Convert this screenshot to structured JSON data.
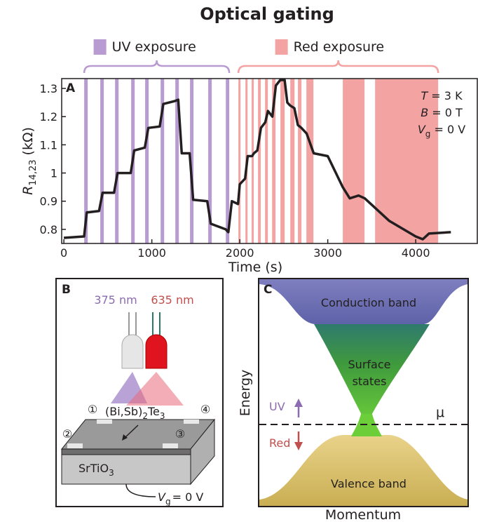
{
  "title": "Optical gating",
  "chart_data": {
    "type": "line",
    "panel": "A",
    "xlabel": "Time (s)",
    "ylabel": [
      "R",
      "14,23",
      " (kΩ)"
    ],
    "uv_label": "UV exposure",
    "red_label": "Red exposure",
    "x": [
      0,
      230,
      260,
      400,
      440,
      570,
      610,
      760,
      800,
      920,
      960,
      1090,
      1130,
      1260,
      1300,
      1340,
      1430,
      1470,
      1630,
      1670,
      1840,
      1870,
      1910,
      1980,
      2000,
      2060,
      2090,
      2140,
      2160,
      2200,
      2240,
      2290,
      2320,
      2370,
      2410,
      2460,
      2510,
      2540,
      2570,
      2620,
      2660,
      2700,
      2760,
      2840,
      3000,
      3170,
      3250,
      3350,
      3420,
      3700,
      4000,
      4080,
      4150,
      4400
    ],
    "series": [
      {
        "color": "#231f20",
        "values": [
          0.77,
          0.775,
          0.86,
          0.865,
          0.93,
          0.93,
          1.0,
          1.0,
          1.08,
          1.09,
          1.16,
          1.165,
          1.245,
          1.255,
          1.26,
          1.07,
          1.07,
          0.905,
          0.9,
          0.82,
          0.8,
          0.79,
          0.9,
          0.89,
          0.96,
          0.98,
          1.06,
          1.06,
          1.07,
          1.08,
          1.16,
          1.18,
          1.22,
          1.2,
          1.31,
          1.33,
          1.33,
          1.25,
          1.24,
          1.23,
          1.17,
          1.16,
          1.14,
          1.07,
          1.06,
          0.95,
          0.91,
          0.92,
          0.91,
          0.83,
          0.775,
          0.765,
          0.785,
          0.79
        ]
      }
    ],
    "xlim": [
      -25,
      4700
    ],
    "ylim": [
      0.75,
      1.335
    ],
    "xticks": [
      0,
      1000,
      2000,
      3000,
      4000
    ],
    "yticks": [
      0.8,
      0.9,
      1,
      1.1,
      1.2,
      1.3
    ],
    "uv_color": "#b89bd1",
    "red_color": "#f4a3a3",
    "uv_exposures": [
      [
        231,
        271
      ],
      [
        414,
        454
      ],
      [
        582,
        622
      ],
      [
        765,
        805
      ],
      [
        924,
        964
      ],
      [
        1100,
        1140
      ],
      [
        1267,
        1307
      ],
      [
        1434,
        1474
      ],
      [
        1641,
        1681
      ],
      [
        1841,
        1880
      ]
    ],
    "red_exposures": [
      [
        1984,
        2008
      ],
      [
        2064,
        2088
      ],
      [
        2135,
        2159
      ],
      [
        2207,
        2239
      ],
      [
        2287,
        2319
      ],
      [
        2367,
        2406
      ],
      [
        2462,
        2510
      ],
      [
        2574,
        2622
      ],
      [
        2661,
        2701
      ],
      [
        2757,
        2837
      ],
      [
        3171,
        3418
      ],
      [
        3538,
        4255
      ]
    ],
    "annotations": [
      [
        "T",
        " = 3 K"
      ],
      [
        "B",
        " = 0 T"
      ],
      [
        "V",
        "g",
        " = 0 V"
      ]
    ]
  },
  "panel_b": {
    "letter": "B",
    "uv_wavelength": "375 nm",
    "red_wavelength": "635 nm",
    "contacts": [
      "①",
      "②",
      "③",
      "④"
    ],
    "material": [
      "(Bi,Sb)",
      "2",
      "Te",
      "3"
    ],
    "substrate": [
      "SrTiO",
      "3"
    ],
    "gate": [
      "V",
      "g",
      "= 0 V"
    ]
  },
  "panel_c": {
    "letter": "C",
    "conduction": "Conduction band",
    "surface": [
      "Surface",
      "states"
    ],
    "valence": "Valence band",
    "ylabel": "Energy",
    "xlabel": "Momentum",
    "uv": "UV",
    "red": "Red",
    "mu": "μ"
  }
}
